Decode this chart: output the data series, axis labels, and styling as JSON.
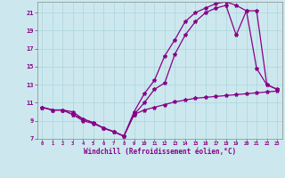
{
  "xlabel": "Windchill (Refroidissement éolien,°C)",
  "background_color": "#cce8ee",
  "line_color": "#880088",
  "xlim": [
    -0.5,
    23.5
  ],
  "ylim": [
    7,
    22.2
  ],
  "xticks": [
    0,
    1,
    2,
    3,
    4,
    5,
    6,
    7,
    8,
    9,
    10,
    11,
    12,
    13,
    14,
    15,
    16,
    17,
    18,
    19,
    20,
    21,
    22,
    23
  ],
  "yticks": [
    7,
    9,
    11,
    13,
    15,
    17,
    19,
    21
  ],
  "line1_x": [
    0,
    1,
    2,
    3,
    4,
    5,
    6,
    7,
    8,
    9,
    10,
    11,
    12,
    13,
    14,
    15,
    16,
    17,
    18,
    19,
    20,
    21,
    22,
    23
  ],
  "line1_y": [
    10.5,
    10.2,
    10.2,
    10.0,
    9.2,
    8.8,
    8.2,
    7.8,
    7.3,
    9.7,
    10.2,
    10.5,
    10.8,
    11.1,
    11.3,
    11.5,
    11.6,
    11.7,
    11.8,
    11.9,
    12.0,
    12.1,
    12.2,
    12.3
  ],
  "line2_x": [
    0,
    1,
    2,
    3,
    4,
    5,
    6,
    7,
    8,
    9,
    10,
    11,
    12,
    13,
    14,
    15,
    16,
    17,
    18,
    19,
    20,
    21,
    22,
    23
  ],
  "line2_y": [
    10.5,
    10.2,
    10.2,
    9.7,
    9.2,
    8.8,
    8.2,
    7.8,
    7.3,
    9.7,
    11.0,
    12.5,
    13.2,
    16.4,
    18.5,
    20.0,
    21.0,
    21.5,
    21.8,
    18.5,
    21.2,
    14.8,
    13.0,
    12.5
  ],
  "line3_x": [
    0,
    1,
    2,
    3,
    4,
    5,
    6,
    7,
    8,
    9,
    10,
    11,
    12,
    13,
    14,
    15,
    16,
    17,
    18,
    19,
    20,
    21,
    22,
    23
  ],
  "line3_y": [
    10.5,
    10.2,
    10.2,
    9.7,
    9.0,
    8.7,
    8.2,
    7.8,
    7.3,
    10.0,
    12.0,
    13.5,
    16.2,
    18.0,
    20.0,
    21.0,
    21.5,
    22.0,
    22.2,
    21.8,
    21.2,
    21.2,
    13.0,
    12.5
  ],
  "grid_color": "#aad4da",
  "marker": "*",
  "markersize": 3.0,
  "linewidth": 0.9
}
